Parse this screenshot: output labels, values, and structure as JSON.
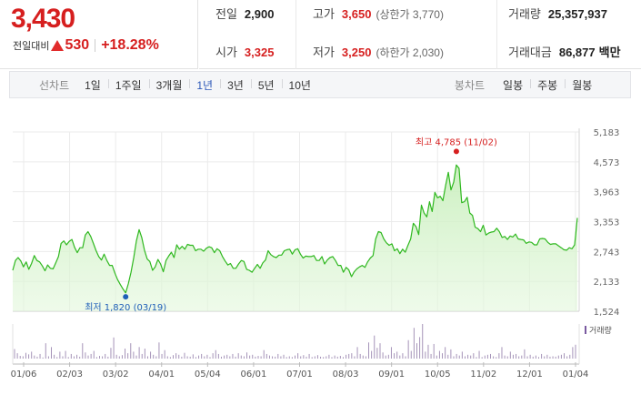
{
  "header": {
    "current_price": "3,430",
    "change_label": "전일대비",
    "change_amount": "530",
    "change_rate": "+18.28%",
    "stats": {
      "prev_close": {
        "label": "전일",
        "value": "2,900"
      },
      "open": {
        "label": "시가",
        "value": "3,325"
      },
      "high": {
        "label": "고가",
        "value": "3,650",
        "sub": "(상한가 3,770)"
      },
      "low": {
        "label": "저가",
        "value": "3,250",
        "sub": "(하한가 2,030)"
      },
      "volume": {
        "label": "거래량",
        "value": "25,357,937"
      },
      "trade_value": {
        "label": "거래대금",
        "value": "86,877",
        "unit": "백만"
      }
    }
  },
  "tabs": {
    "line_title": "선차트",
    "line_tabs": [
      "1일",
      "1주일",
      "3개월",
      "1년",
      "3년",
      "5년",
      "10년"
    ],
    "active_line_tab": "1년",
    "candle_title": "봉차트",
    "candle_tabs": [
      "일봉",
      "주봉",
      "월봉"
    ]
  },
  "colors": {
    "up": "#d61f1f",
    "active_tab": "#2d58b8",
    "line": "#2fb81f",
    "area": "#e3f7dc",
    "volume_bar": "#a593b8",
    "low_marker": "#1f5fb8"
  },
  "chart_data": {
    "type": "area",
    "y_ticks": [
      "5,183",
      "4,573",
      "3,963",
      "3,353",
      "2,743",
      "2,133",
      "1,524"
    ],
    "ylim": [
      1524,
      5183
    ],
    "x_ticks": [
      "01/06",
      "02/03",
      "03/02",
      "04/01",
      "05/04",
      "06/01",
      "07/01",
      "08/03",
      "09/01",
      "10/05",
      "11/02",
      "12/01",
      "01/04"
    ],
    "price_series": [
      2360,
      2560,
      2620,
      2550,
      2430,
      2530,
      2380,
      2500,
      2660,
      2560,
      2530,
      2450,
      2350,
      2470,
      2400,
      2390,
      2510,
      2640,
      2910,
      2960,
      2880,
      2950,
      2990,
      2830,
      2720,
      2820,
      2820,
      3080,
      3150,
      3050,
      2910,
      2760,
      2640,
      2570,
      2690,
      2560,
      2460,
      2460,
      2300,
      2170,
      2070,
      1980,
      1900,
      2090,
      2320,
      2620,
      2960,
      3190,
      3030,
      2770,
      2590,
      2540,
      2360,
      2430,
      2580,
      2490,
      2330,
      2560,
      2650,
      2730,
      2620,
      2880,
      2790,
      2850,
      2790,
      2890,
      2870,
      2870,
      2760,
      2790,
      2790,
      2750,
      2810,
      2840,
      2820,
      2720,
      2800,
      2760,
      2640,
      2550,
      2470,
      2500,
      2400,
      2400,
      2490,
      2560,
      2540,
      2380,
      2360,
      2320,
      2400,
      2480,
      2400,
      2510,
      2570,
      2760,
      2680,
      2640,
      2620,
      2670,
      2670,
      2760,
      2780,
      2790,
      2690,
      2780,
      2800,
      2690,
      2610,
      2650,
      2640,
      2640,
      2660,
      2560,
      2560,
      2640,
      2490,
      2570,
      2620,
      2640,
      2560,
      2460,
      2460,
      2320,
      2420,
      2370,
      2230,
      2330,
      2390,
      2430,
      2460,
      2420,
      2530,
      2610,
      2660,
      3000,
      3150,
      3130,
      3000,
      2920,
      2870,
      2900,
      2760,
      2800,
      2700,
      2790,
      2730,
      2870,
      3000,
      3320,
      3250,
      3090,
      3690,
      3530,
      3450,
      3760,
      3560,
      3950,
      3840,
      3870,
      3780,
      4090,
      4360,
      4000,
      4160,
      4510,
      4440,
      3740,
      3760,
      3850,
      3530,
      3480,
      3240,
      3210,
      3150,
      3280,
      3080,
      3120,
      3140,
      3150,
      3220,
      3150,
      3030,
      3050,
      2990,
      3060,
      3040,
      3100,
      3000,
      2990,
      2980,
      2910,
      2940,
      2930,
      2880,
      2880,
      3000,
      3010,
      3000,
      2930,
      2890,
      2900,
      2900,
      2860,
      2820,
      2780,
      2770,
      2820,
      2800,
      2880,
      3430
    ],
    "max_annotation": {
      "label": "최고",
      "value": "4,785",
      "date": "(11/02)",
      "price": 4785
    },
    "min_annotation": {
      "label": "최저",
      "value": "1,820",
      "date": "(03/19)",
      "price": 1820
    },
    "volume_legend": "거래량",
    "volume_series": [
      25,
      14,
      7,
      6,
      15,
      11,
      18,
      8,
      5,
      12,
      3,
      40,
      6,
      30,
      10,
      4,
      18,
      6,
      20,
      4,
      12,
      6,
      10,
      5,
      40,
      16,
      8,
      12,
      20,
      4,
      7,
      6,
      12,
      5,
      28,
      55,
      10,
      6,
      9,
      26,
      14,
      40,
      18,
      8,
      30,
      12,
      26,
      6,
      18,
      10,
      6,
      42,
      12,
      22,
      6,
      4,
      9,
      14,
      10,
      5,
      15,
      6,
      5,
      11,
      4,
      8,
      12,
      6,
      10,
      4,
      14,
      22,
      12,
      5,
      8,
      10,
      6,
      12,
      5,
      14,
      8,
      6,
      16,
      8,
      10,
      5,
      7,
      6,
      22,
      12,
      8,
      6,
      5,
      12,
      6,
      10,
      4,
      6,
      4,
      8,
      14,
      6,
      9,
      5,
      12,
      4,
      6,
      9,
      5,
      4,
      6,
      10,
      4,
      8,
      5,
      7,
      4,
      10,
      12,
      14,
      6,
      30,
      12,
      8,
      6,
      42,
      20,
      60,
      28,
      40,
      16,
      8,
      10,
      30,
      14,
      18,
      8,
      14,
      6,
      48,
      20,
      80,
      40,
      56,
      90,
      18,
      36,
      12,
      38,
      8,
      20,
      14,
      30,
      10,
      24,
      6,
      12,
      8,
      18,
      6,
      10,
      8,
      14,
      4,
      20,
      4,
      8,
      10,
      12,
      6,
      4,
      14,
      30,
      8,
      6,
      18,
      10,
      12,
      6,
      8,
      24,
      6,
      10,
      5,
      8,
      4,
      12,
      6,
      10,
      5,
      6,
      5,
      8,
      10,
      14,
      6,
      10,
      30,
      36
    ]
  }
}
